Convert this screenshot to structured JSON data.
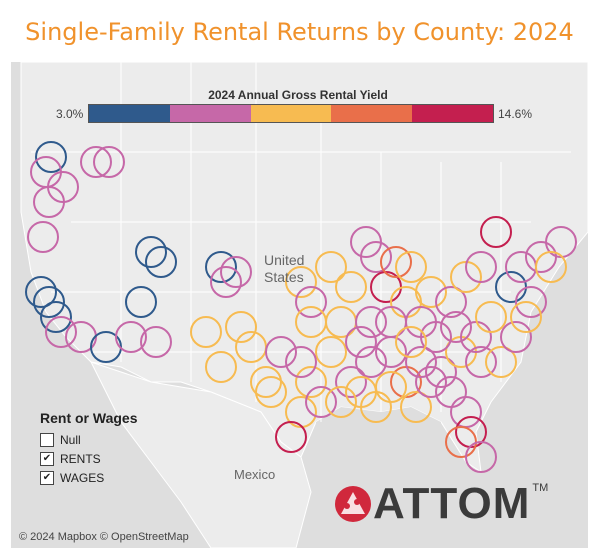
{
  "title": "Single-Family Rental Returns by County: 2024",
  "title_color": "#f0922c",
  "legend": {
    "title": "2024 Annual Gross Rental Yield",
    "min_label": "3.0%",
    "max_label": "14.6%",
    "colors": [
      "#2f5a8c",
      "#c668a8",
      "#f7bb51",
      "#e96f4a",
      "#c41f4f"
    ]
  },
  "rent_or_wages": {
    "title": "Rent or Wages",
    "options": [
      {
        "label": "Null",
        "checked": false
      },
      {
        "label": "RENTS",
        "checked": true
      },
      {
        "label": "WAGES",
        "checked": true
      }
    ]
  },
  "map_labels": {
    "us_line1": "United",
    "us_line2": "States",
    "mexico": "Mexico"
  },
  "copyright": "© 2024 Mapbox © OpenStreetMap",
  "logo": {
    "text": "ATTOM",
    "tm": "TM",
    "accent": "#d0283c"
  }
}
